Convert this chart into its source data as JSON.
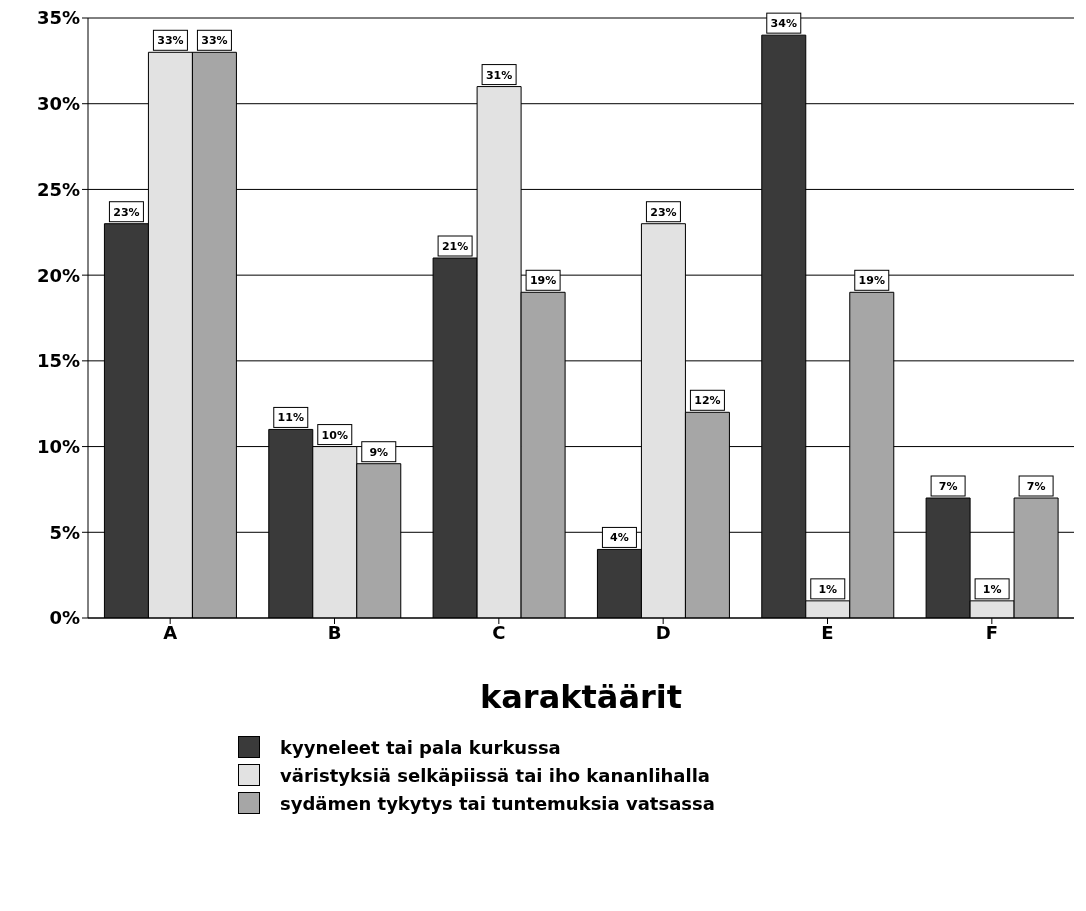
{
  "chart_data": {
    "type": "bar",
    "xlabel": "karaktäärit",
    "categories": [
      "A",
      "B",
      "C",
      "D",
      "E",
      "F"
    ],
    "series": [
      {
        "name": "kyyneleet tai pala kurkussa",
        "color": "#3a3a3a",
        "values": [
          23,
          11,
          21,
          4,
          34,
          7
        ],
        "value_labels": [
          "23%",
          "11%",
          "21%",
          "4%",
          "34%",
          "7%"
        ]
      },
      {
        "name": "väristyksiä selkäpiissä tai iho kananlihalla",
        "color": "#e2e2e2",
        "values": [
          33,
          10,
          31,
          23,
          1,
          1
        ],
        "value_labels": [
          "33%",
          "10%",
          "31%",
          "23%",
          "1%",
          "1%"
        ]
      },
      {
        "name": "sydämen tykytys tai tuntemuksia vatsassa",
        "color": "#a6a6a6",
        "values": [
          33,
          9,
          19,
          12,
          19,
          7
        ],
        "value_labels": [
          "33%",
          "9%",
          "19%",
          "12%",
          "19%",
          "7%"
        ]
      }
    ],
    "ylim": [
      0,
      35
    ],
    "yticks": [
      {
        "value": 0,
        "label": "0%"
      },
      {
        "value": 5,
        "label": "5%"
      },
      {
        "value": 10,
        "label": "10%"
      },
      {
        "value": 15,
        "label": "15%"
      },
      {
        "value": 20,
        "label": "20%"
      },
      {
        "value": 25,
        "label": "25%"
      },
      {
        "value": 30,
        "label": "30%"
      },
      {
        "value": 35,
        "label": "35%"
      }
    ],
    "grid": "y",
    "legend": "bottom"
  }
}
